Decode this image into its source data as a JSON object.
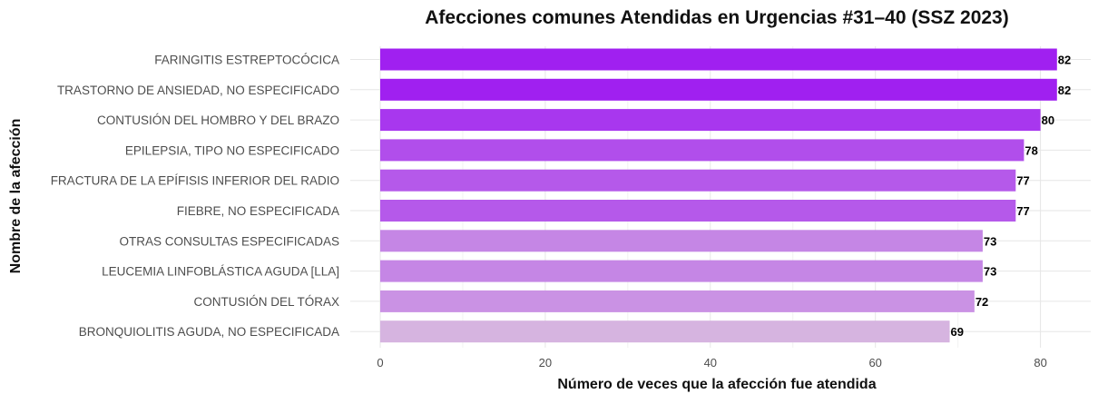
{
  "chart_data": {
    "type": "bar",
    "orientation": "horizontal",
    "title": "Afecciones comunes Atendidas en Urgencias #31–40 (SSZ 2023)",
    "xlabel": "Número de veces que la afección fue atendida",
    "ylabel": "Nombre de la afección",
    "xlim": [
      0,
      85
    ],
    "xticks": [
      0,
      20,
      40,
      60,
      80
    ],
    "grid": true,
    "legend": "none",
    "color_scale": {
      "low": "#d6b4e0",
      "high": "#a020f0"
    },
    "categories": [
      "FARINGITIS ESTREPTOCÓCICA",
      "TRASTORNO DE ANSIEDAD, NO ESPECIFICADO",
      "CONTUSIÓN DEL HOMBRO Y DEL BRAZO",
      "EPILEPSIA, TIPO NO ESPECIFICADO",
      "FRACTURA DE LA EPÍFISIS INFERIOR DEL RADIO",
      "FIEBRE, NO ESPECIFICADA",
      "OTRAS CONSULTAS ESPECIFICADAS",
      "LEUCEMIA LINFOBLÁSTICA AGUDA [LLA]",
      "CONTUSIÓN DEL TÓRAX",
      "BRONQUIOLITIS AGUDA, NO ESPECIFICADA"
    ],
    "values": [
      82,
      82,
      80,
      78,
      77,
      77,
      73,
      73,
      72,
      69
    ]
  }
}
